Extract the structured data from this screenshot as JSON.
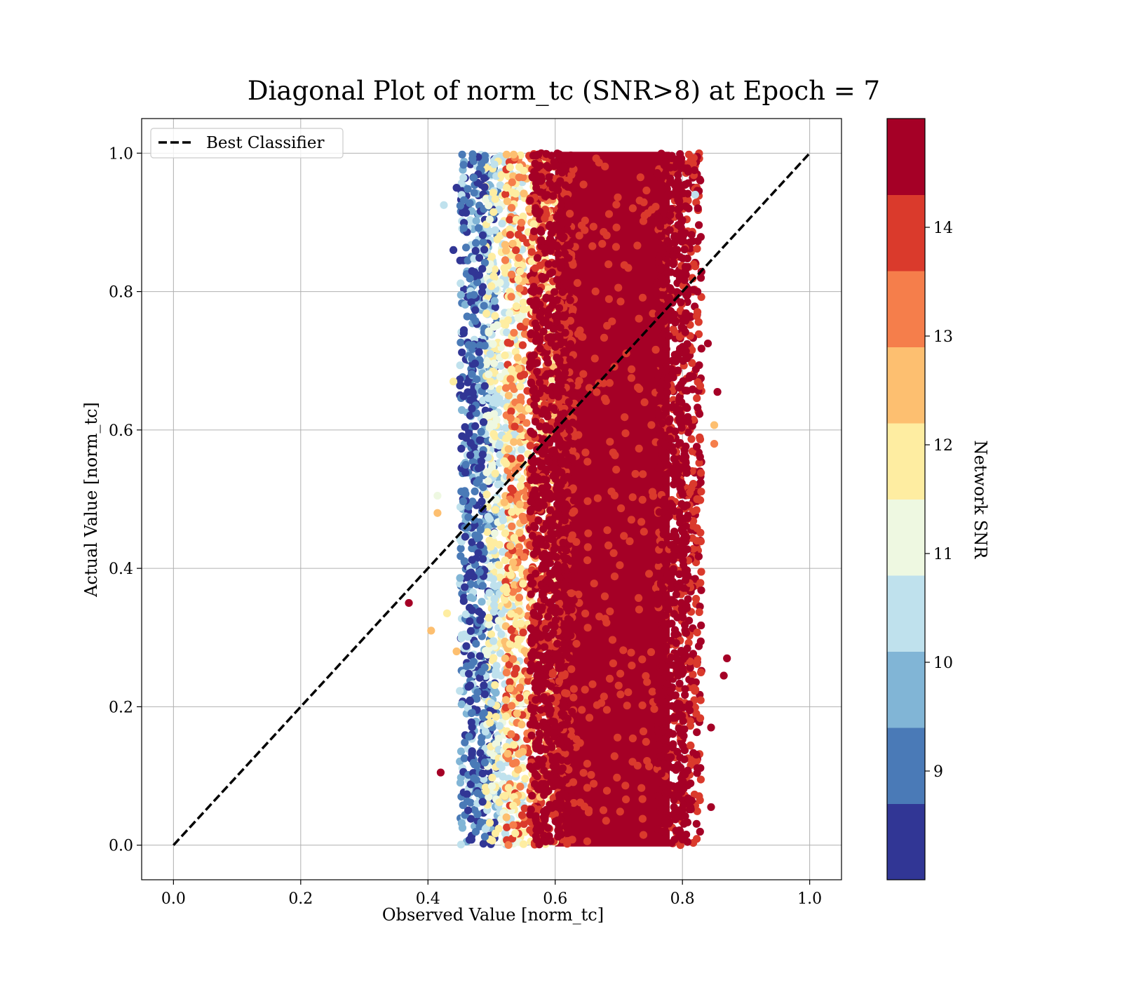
{
  "chart_data": {
    "type": "scatter",
    "title": "Diagonal Plot of norm_tc (SNR>8) at Epoch = 7",
    "xlabel": "Observed Value [norm_tc]",
    "ylabel": "Actual Value [norm_tc]",
    "xlim": [
      -0.05,
      1.05
    ],
    "ylim": [
      -0.05,
      1.05
    ],
    "xticks": [
      "0.0",
      "0.2",
      "0.4",
      "0.6",
      "0.8",
      "1.0"
    ],
    "yticks": [
      "0.0",
      "0.2",
      "0.4",
      "0.6",
      "0.8",
      "1.0"
    ],
    "grid": true,
    "legend": {
      "position": "top-left",
      "entries": [
        {
          "label": "Best Classifier",
          "style": "dashed",
          "color": "#000000"
        }
      ]
    },
    "reference_line": {
      "x": [
        0,
        1
      ],
      "y": [
        0,
        1
      ],
      "style": "dashed",
      "color": "#000000"
    },
    "colorbar": {
      "label": "Network SNR",
      "range": [
        8,
        15
      ],
      "ticks": [
        "9",
        "10",
        "11",
        "12",
        "13",
        "14"
      ],
      "levels": [
        {
          "from": 8.0,
          "to": 8.7,
          "color": "#313695"
        },
        {
          "from": 8.7,
          "to": 9.4,
          "color": "#4a7ab7"
        },
        {
          "from": 9.4,
          "to": 10.1,
          "color": "#81b5d6"
        },
        {
          "from": 10.1,
          "to": 10.8,
          "color": "#bfe1ed"
        },
        {
          "from": 10.8,
          "to": 11.5,
          "color": "#eef8e1"
        },
        {
          "from": 11.5,
          "to": 12.2,
          "color": "#feeda1"
        },
        {
          "from": 12.2,
          "to": 12.9,
          "color": "#fdbf70"
        },
        {
          "from": 12.9,
          "to": 13.6,
          "color": "#f57e4b"
        },
        {
          "from": 13.6,
          "to": 14.3,
          "color": "#da3a2c"
        },
        {
          "from": 14.3,
          "to": 15.0,
          "color": "#a50026"
        }
      ]
    },
    "scatter_distribution": {
      "y_range": [
        0.0,
        1.0
      ],
      "dense_core": {
        "x_range": [
          0.6,
          0.78
        ],
        "snr": ">14.3"
      },
      "bands": [
        {
          "x_range": [
            0.45,
            0.51
          ],
          "snr_range": [
            8.0,
            10.8
          ]
        },
        {
          "x_range": [
            0.49,
            0.55
          ],
          "snr_range": [
            10.1,
            12.2
          ]
        },
        {
          "x_range": [
            0.52,
            0.6
          ],
          "snr_range": [
            11.5,
            14.3
          ]
        },
        {
          "x_range": [
            0.56,
            0.63
          ],
          "snr_range": [
            13.6,
            15.0
          ]
        },
        {
          "x_range": [
            0.78,
            0.83
          ],
          "snr_range": [
            13.6,
            15.0
          ]
        }
      ],
      "outliers": [
        {
          "x": 0.37,
          "y": 0.35,
          "snr": 14.5
        },
        {
          "x": 0.42,
          "y": 0.105,
          "snr": 14.6
        },
        {
          "x": 0.405,
          "y": 0.31,
          "snr": 12.5
        },
        {
          "x": 0.43,
          "y": 0.335,
          "snr": 12.0
        },
        {
          "x": 0.415,
          "y": 0.48,
          "snr": 12.5
        },
        {
          "x": 0.415,
          "y": 0.505,
          "snr": 11.3
        },
        {
          "x": 0.445,
          "y": 0.28,
          "snr": 12.5
        },
        {
          "x": 0.44,
          "y": 0.67,
          "snr": 12.0
        },
        {
          "x": 0.425,
          "y": 0.925,
          "snr": 10.5
        },
        {
          "x": 0.44,
          "y": 0.86,
          "snr": 8.3
        },
        {
          "x": 0.445,
          "y": 0.95,
          "snr": 8.3
        },
        {
          "x": 0.87,
          "y": 0.27,
          "snr": 14.6
        },
        {
          "x": 0.865,
          "y": 0.245,
          "snr": 14.6
        },
        {
          "x": 0.855,
          "y": 0.655,
          "snr": 14.6
        },
        {
          "x": 0.85,
          "y": 0.607,
          "snr": 12.5
        },
        {
          "x": 0.845,
          "y": 0.055,
          "snr": 14.6
        },
        {
          "x": 0.845,
          "y": 0.17,
          "snr": 14.6
        },
        {
          "x": 0.84,
          "y": 0.725,
          "snr": 14.6
        },
        {
          "x": 0.85,
          "y": 0.58,
          "snr": 13.5
        },
        {
          "x": 0.82,
          "y": 0.94,
          "snr": 10.5
        }
      ]
    }
  }
}
